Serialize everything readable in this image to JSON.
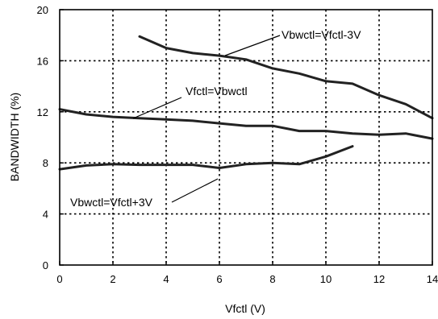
{
  "chart_data": {
    "type": "line",
    "xlabel": "Vfctl (V)",
    "ylabel": "BANDWIDTH (%)",
    "xlim": [
      0,
      14
    ],
    "ylim": [
      0,
      20
    ],
    "xticks": [
      0,
      2,
      4,
      6,
      8,
      10,
      12,
      14
    ],
    "yticks": [
      0,
      4,
      8,
      12,
      16,
      20
    ],
    "xtick_labels": [
      "0",
      "2",
      "4",
      "6",
      "8",
      "10",
      "12",
      "14"
    ],
    "ytick_labels": [
      "0",
      "4",
      "8",
      "12",
      "16",
      "20"
    ],
    "grid": true,
    "grid_style": "dotted",
    "line_color": "#222222",
    "series": [
      {
        "name": "Vbwctl=Vfctl-3V",
        "x": [
          3,
          4,
          5,
          6,
          7,
          8,
          9,
          10,
          11,
          12,
          13,
          14
        ],
        "y": [
          17.9,
          17.0,
          16.6,
          16.4,
          16.1,
          15.4,
          15.0,
          14.4,
          14.2,
          13.3,
          12.6,
          11.5
        ]
      },
      {
        "name": "Vfctl=Vbwctl",
        "x": [
          0,
          1,
          2,
          3,
          4,
          5,
          6,
          7,
          8,
          9,
          10,
          11,
          12,
          13,
          14
        ],
        "y": [
          12.2,
          11.8,
          11.6,
          11.5,
          11.4,
          11.3,
          11.1,
          10.9,
          10.9,
          10.5,
          10.5,
          10.3,
          10.2,
          10.3,
          9.9
        ]
      },
      {
        "name": "Vbwctl=Vfctl+3V",
        "x": [
          0,
          1,
          2,
          3,
          4,
          5,
          6,
          7,
          8,
          9,
          10,
          11
        ],
        "y": [
          7.5,
          7.8,
          7.9,
          7.85,
          7.85,
          7.85,
          7.6,
          7.9,
          8.0,
          7.9,
          8.5,
          9.3
        ]
      }
    ],
    "annotations": [
      {
        "text": "Vbwctl=Vfctl-3V",
        "series": 0
      },
      {
        "text": "Vfctl=Vbwctl",
        "series": 1
      },
      {
        "text": "Vbwctl=Vfctl+3V",
        "series": 2
      }
    ]
  }
}
